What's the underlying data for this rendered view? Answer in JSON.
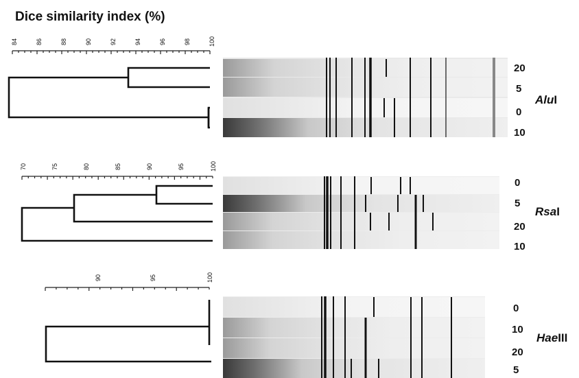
{
  "title": "Dice similarity index (%)",
  "panels": [
    {
      "id": "alu",
      "enzyme_italic": "Alu",
      "enzyme_suffix": "I",
      "scale_ticks": [
        "84",
        "86",
        "88",
        "90",
        "92",
        "94",
        "96",
        "98",
        "100"
      ],
      "lanes": [
        "20",
        "5",
        "0",
        "10"
      ],
      "dendrogram": "((20,5):95.5,(0,10):100):84"
    },
    {
      "id": "rsa",
      "enzyme_italic": "Rsa",
      "enzyme_suffix": "I",
      "scale_ticks": [
        "70",
        "75",
        "80",
        "85",
        "90",
        "95",
        "100"
      ],
      "lanes": [
        "0",
        "5",
        "20",
        "10"
      ],
      "dendrogram": "((((0,5):92,20):80,10):70)"
    },
    {
      "id": "hae",
      "enzyme_italic": "Hae",
      "enzyme_suffix": "III",
      "scale_ticks": [
        "90",
        "95",
        "100"
      ],
      "lanes": [
        "0",
        "10",
        "20",
        "5"
      ],
      "dendrogram": "(((0,10,20):100,5):83)"
    }
  ]
}
